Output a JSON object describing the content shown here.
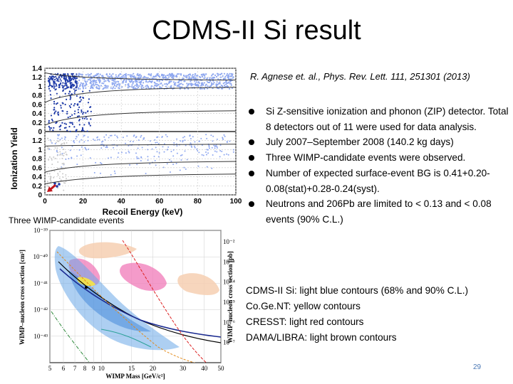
{
  "title": "CDMS-II Si result",
  "reference": "R. Agnese et. al., Phys. Rev. Lett. 111, 251301 (2013)",
  "bullets": [
    "Si Z-sensitive ionization and phonon (ZIP) detector. Total 8 detectors out of 11 were used for data analysis.",
    "July 2007–September 2008 (140.2 kg days)",
    "Three WIMP-candidate events were observed.",
    "Number of expected surface-event BG is 0.41+0.20-0.08(stat)+0.28-0.24(syst).",
    "Neutrons and 206Pb are limited to < 0.13 and < 0.08 events (90% C.L.)"
  ],
  "legend_lines": [
    "CDMS-II Si: light blue contours (68% and 90% C.L.)",
    "Co.Ge.NT: yellow contours",
    "CRESST: light red contours",
    "DAMA/LIBRA: light brown contours"
  ],
  "caption": "Three WIMP-candidate events",
  "page_number": "29",
  "colors": {
    "cdms_blue": "#6aa8e8",
    "cogent_yellow": "#f2e34a",
    "cresst_red": "#f07ab8",
    "dama_brown": "#f6cfb2",
    "event_blue": "#1e3aa8",
    "band_lightblue": "#8fa8f0",
    "page_number": "#4a78b5"
  },
  "chart_data": [
    {
      "type": "scatter",
      "title": "",
      "xlabel": "Recoil Energy (keV)",
      "ylabel": "Ionization Yield",
      "xlim": [
        0,
        100
      ],
      "x_ticks": [
        "0",
        "20",
        "40",
        "60",
        "80",
        "100"
      ],
      "y_ticks_upper": [
        "1.4",
        "1.2",
        "1",
        "0.8",
        "0.6",
        "0.4",
        "0.2",
        "0"
      ],
      "y_ticks_lower": [
        "1.2",
        "1",
        "0.8",
        "0.6",
        "0.4",
        "0.2",
        "0"
      ],
      "annotations": [
        "Three WIMP-candidate events"
      ],
      "grid": true
    },
    {
      "type": "area",
      "title": "",
      "xlabel": "WIMP Mass [GeV/c²]",
      "ylabel": "WIMP–nucleon cross section [cm²]",
      "ylabel_right": "WIMP–nucleon cross section [pb]",
      "x_scale": "log",
      "y_scale": "log",
      "xlim": [
        5,
        50
      ],
      "x_ticks": [
        "5",
        "6",
        "7",
        "8",
        "9",
        "10",
        "15",
        "20",
        "30",
        "40",
        "50"
      ],
      "y_ticks_left": [
        "10⁻³⁹",
        "10⁻⁴⁰",
        "10⁻⁴¹",
        "10⁻⁴²",
        "10⁻⁴³"
      ],
      "y_ticks_right": [
        "10⁻²",
        "10⁻³",
        "10⁻⁴",
        "10⁻⁵",
        "10⁻⁶",
        "10⁻⁷"
      ],
      "grid": true
    }
  ]
}
